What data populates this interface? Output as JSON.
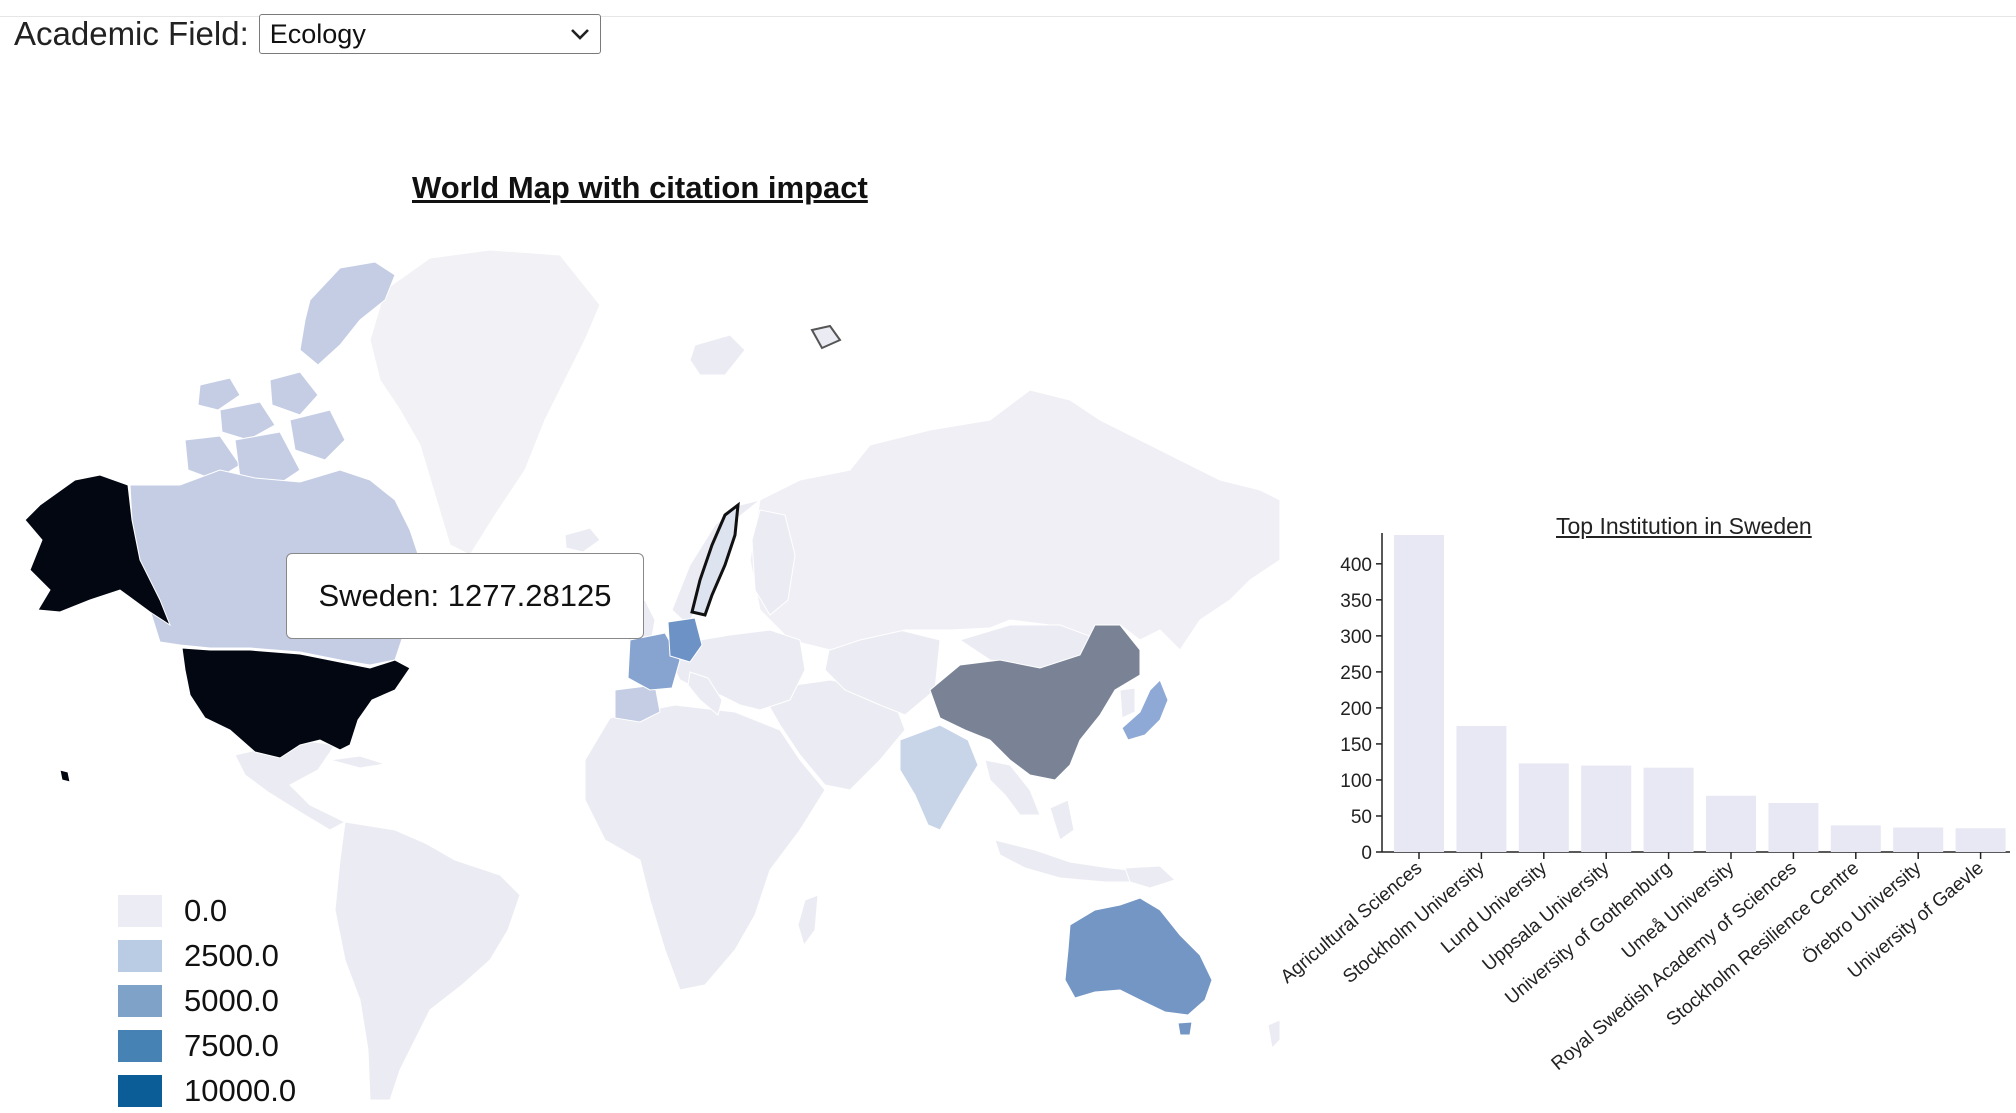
{
  "filter": {
    "label": "Academic Field:",
    "selected": "Ecology"
  },
  "map": {
    "title": "World Map with citation impact",
    "tooltip": "Sweden: 1277.28125",
    "legend": [
      {
        "label": "0.0",
        "color": "#ececf4"
      },
      {
        "label": "2500.0",
        "color": "#b9cce3"
      },
      {
        "label": "5000.0",
        "color": "#7fa3c8"
      },
      {
        "label": "7500.0",
        "color": "#4682b4"
      },
      {
        "label": "10000.0",
        "color": "#0b5d97"
      }
    ],
    "colors": {
      "usa": "#030712",
      "canada": "#c4cde4",
      "greenland": "#f1f1f6",
      "russia": "#f0eff5",
      "china": "#7a8396",
      "australia": "#7396c5",
      "india": "#c8d5e8",
      "germany": "#6d92c6",
      "france": "#86a4cf",
      "sweden": "#dde3ef",
      "japan": "#8fa9d6",
      "default": "#ebebf3"
    }
  },
  "chart_data": {
    "type": "bar",
    "title": "Top Institution in Sweden",
    "categories": [
      "Agricultural Sciences",
      "Stockholm University",
      "Lund University",
      "Uppsala University",
      "University of Gothenburg",
      "Umeå University",
      "Royal Swedish Academy of Sciences",
      "Stockholm Resilience Centre",
      "Örebro University",
      "University of Gaevle"
    ],
    "values": [
      440,
      175,
      123,
      120,
      117,
      78,
      68,
      37,
      34,
      33
    ],
    "ylim": [
      0,
      440
    ],
    "yticks": [
      0,
      50,
      100,
      150,
      200,
      250,
      300,
      350,
      400
    ],
    "bar_color": "#e8e8f4",
    "grid": false,
    "xlabel": "",
    "ylabel": ""
  }
}
